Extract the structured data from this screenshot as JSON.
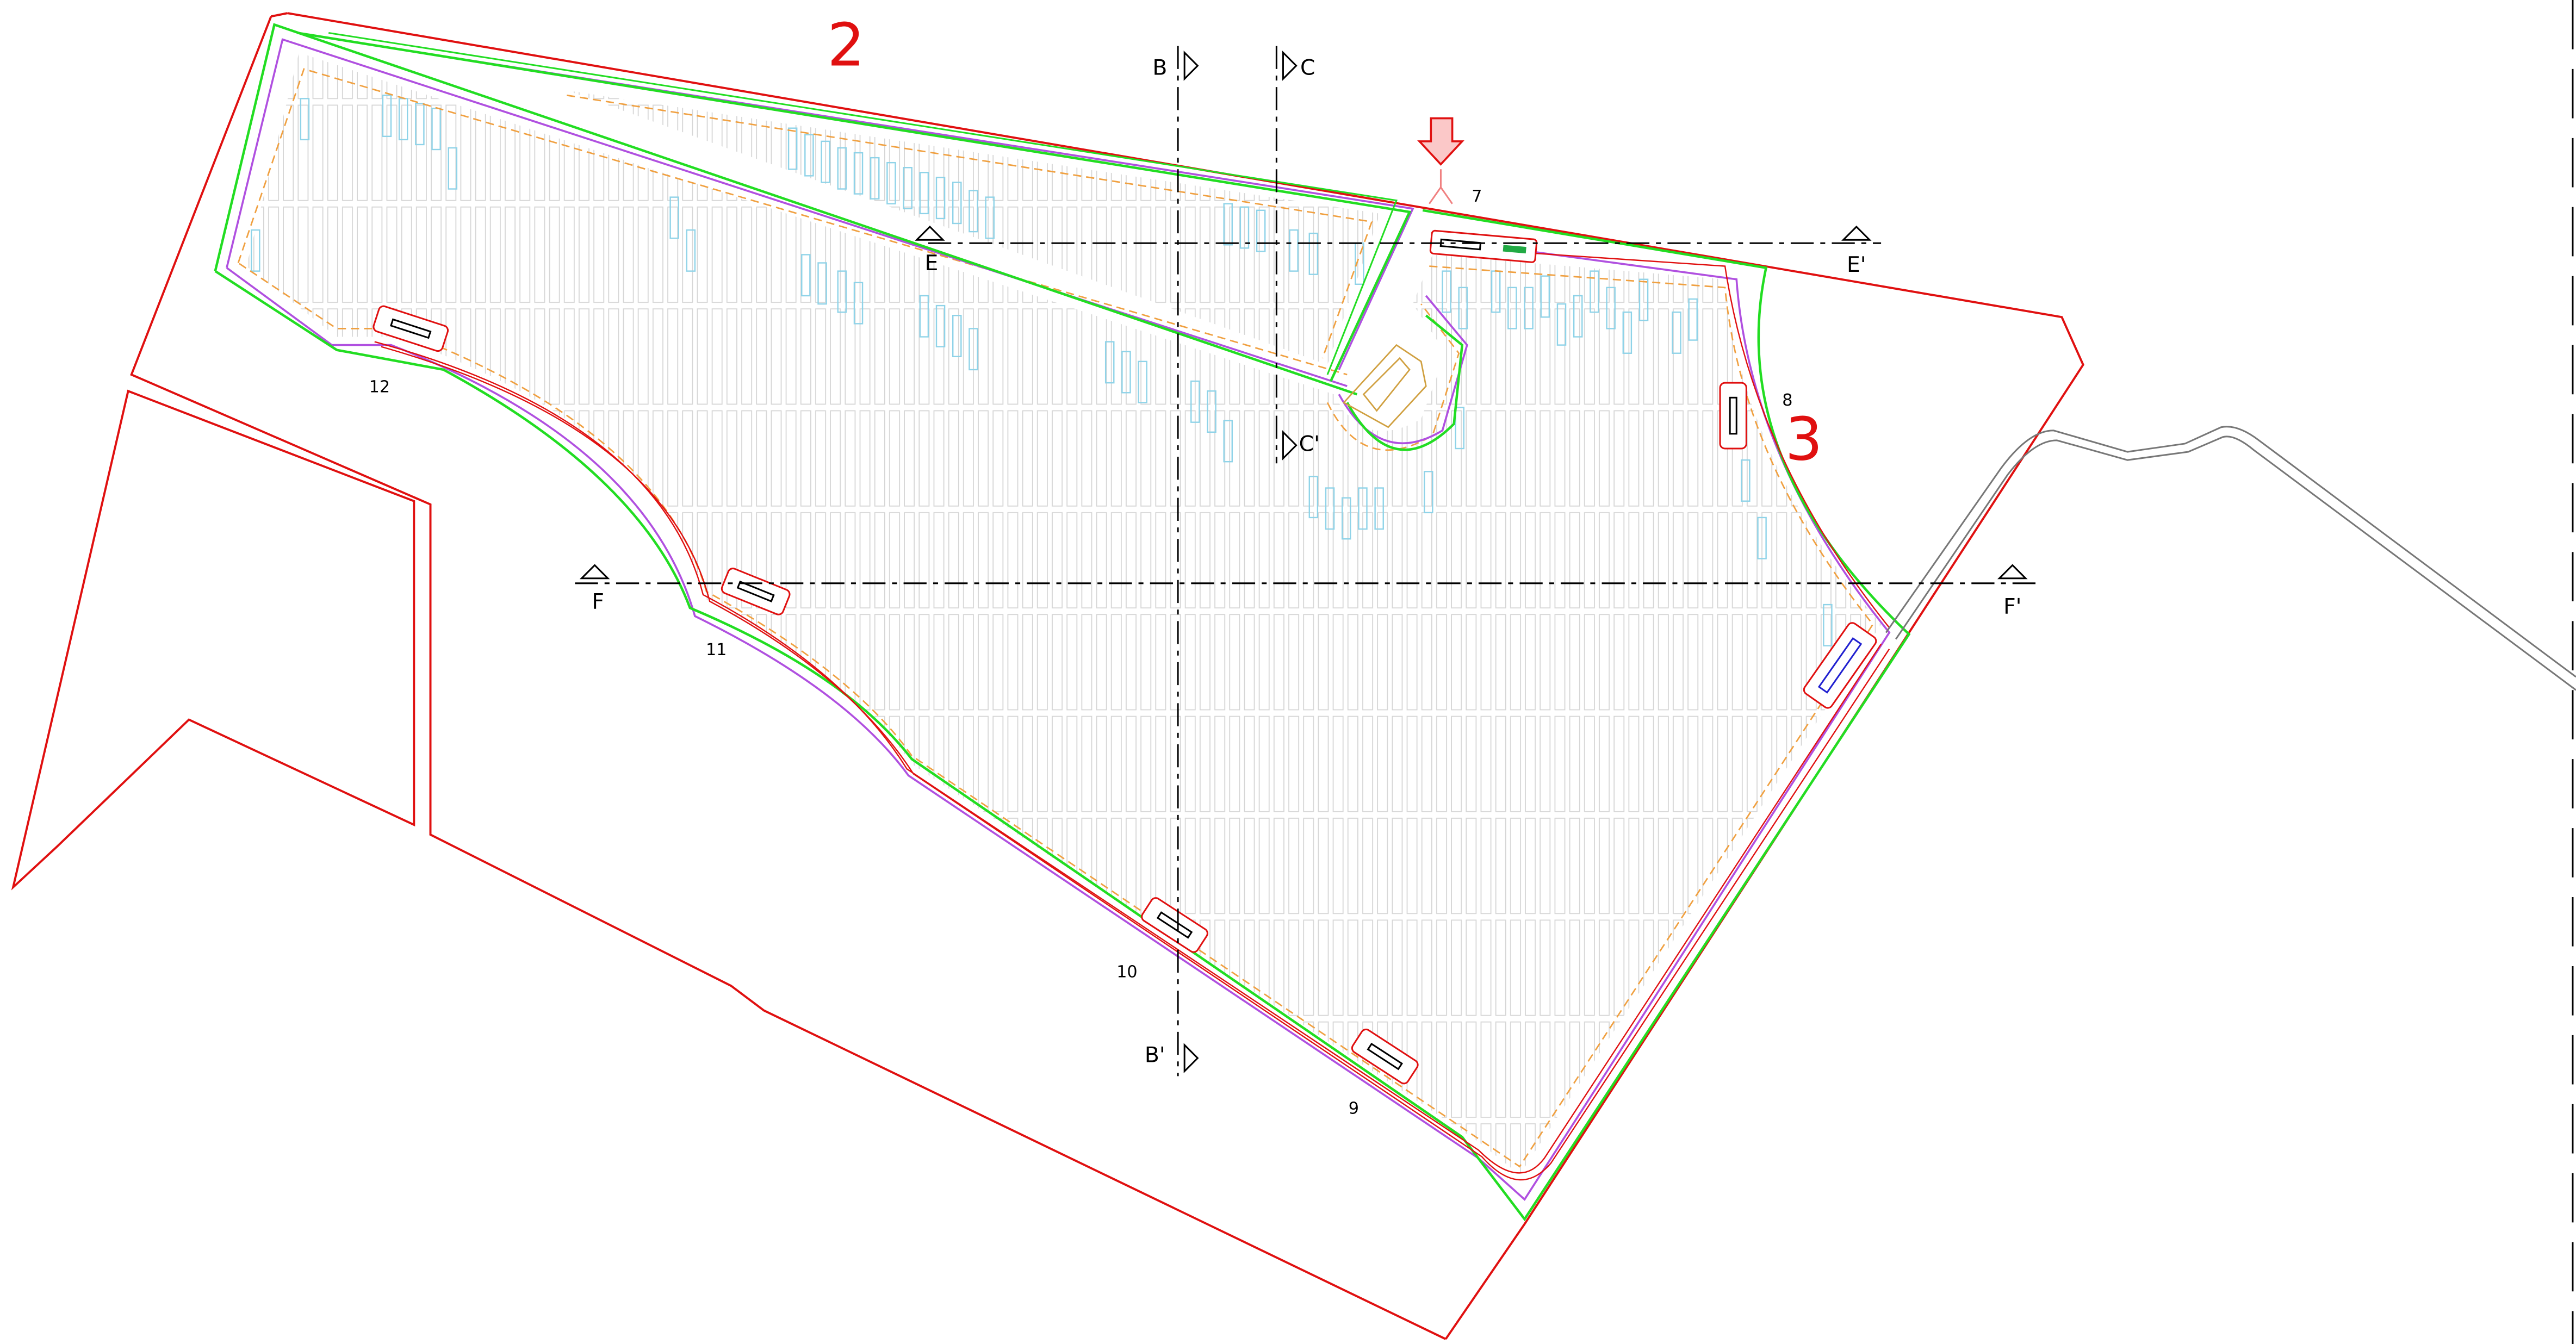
{
  "zones": {
    "north": "2",
    "east": "3"
  },
  "stations": [
    "7",
    "8",
    "9",
    "10",
    "11",
    "12"
  ],
  "sections": {
    "b_top": "B",
    "b_bottom": "B'",
    "c_top": "C",
    "c_bottom": "C'",
    "e_left": "E",
    "e_right": "E'",
    "f_left": "F",
    "f_right": "F'"
  }
}
